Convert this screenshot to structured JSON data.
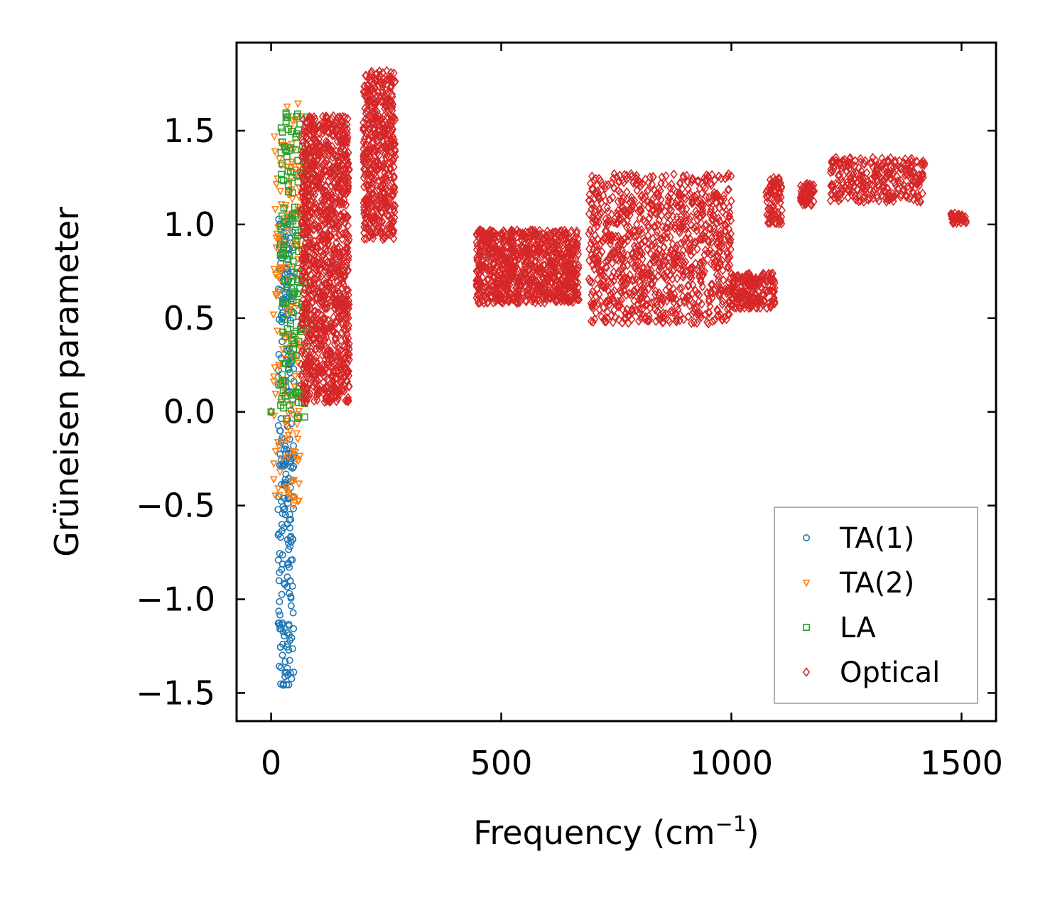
{
  "chart_data": {
    "type": "scatter",
    "title": "",
    "xlabel": "Frequency (cm",
    "xlabel_sup": "−1",
    "xlabel_suffix": ")",
    "ylabel": "Grüneisen parameter",
    "xlim": [
      -75,
      1575
    ],
    "ylim": [
      -1.65,
      1.97
    ],
    "xticks": [
      0,
      500,
      1000,
      1500
    ],
    "xtick_labels": [
      "0",
      "500",
      "1000",
      "1500"
    ],
    "yticks": [
      -1.5,
      -1.0,
      -0.5,
      0.0,
      0.5,
      1.0,
      1.5
    ],
    "ytick_labels": [
      "−1.5",
      "−1.0",
      "−0.5",
      "0.0",
      "0.5",
      "1.0",
      "1.5"
    ],
    "grid": false,
    "legend_position": "lower-right",
    "colors": {
      "TA(1)": "#1f77b4",
      "TA(2)": "#ff7f0e",
      "LA": "#2ca02c",
      "Optical": "#d62728"
    },
    "series": [
      {
        "name": "TA(1)",
        "marker": "circle",
        "clusters": [
          {
            "x": [
              15,
              50
            ],
            "y": [
              -1.47,
              1.05
            ],
            "n": 260
          }
        ]
      },
      {
        "name": "TA(2)",
        "marker": "triangle-down",
        "clusters": [
          {
            "x": [
              5,
              65
            ],
            "y": [
              -0.5,
              1.65
            ],
            "n": 170
          }
        ]
      },
      {
        "name": "LA",
        "marker": "square",
        "clusters": [
          {
            "x": [
              20,
              80
            ],
            "y": [
              -0.04,
              1.64
            ],
            "n": 170
          }
        ]
      },
      {
        "name": "Optical",
        "marker": "diamond",
        "clusters": [
          {
            "x": [
              65,
              170
            ],
            "y": [
              0.05,
              1.58
            ],
            "n": 1200
          },
          {
            "x": [
              200,
              270
            ],
            "y": [
              0.92,
              1.82
            ],
            "n": 500
          },
          {
            "x": [
              445,
              670
            ],
            "y": [
              0.58,
              0.97
            ],
            "n": 900
          },
          {
            "x": [
              690,
              1000
            ],
            "y": [
              0.47,
              1.27
            ],
            "n": 1000
          },
          {
            "x": [
              1000,
              1095
            ],
            "y": [
              0.55,
              0.74
            ],
            "n": 200
          },
          {
            "x": [
              1075,
              1110
            ],
            "y": [
              1.0,
              1.25
            ],
            "n": 80
          },
          {
            "x": [
              1150,
              1180
            ],
            "y": [
              1.1,
              1.22
            ],
            "n": 60
          },
          {
            "x": [
              1215,
              1420
            ],
            "y": [
              1.12,
              1.36
            ],
            "n": 300
          },
          {
            "x": [
              1475,
              1510
            ],
            "y": [
              1.0,
              1.06
            ],
            "n": 40
          }
        ],
        "isolated": [
          {
            "x": 0,
            "y": 0.0
          },
          {
            "x": 150,
            "y": 1.45
          },
          {
            "x": 800,
            "y": 1.1
          },
          {
            "x": 800,
            "y": 0.55
          },
          {
            "x": 860,
            "y": 0.93
          },
          {
            "x": 1085,
            "y": 0.71
          },
          {
            "x": 1090,
            "y": 1.02
          }
        ]
      }
    ],
    "zero_points": [
      {
        "series": "TA(1)",
        "x": 0,
        "y": 0.0
      },
      {
        "series": "TA(2)",
        "x": 0,
        "y": 0.0
      },
      {
        "series": "LA",
        "x": 0,
        "y": 0.0
      }
    ]
  }
}
